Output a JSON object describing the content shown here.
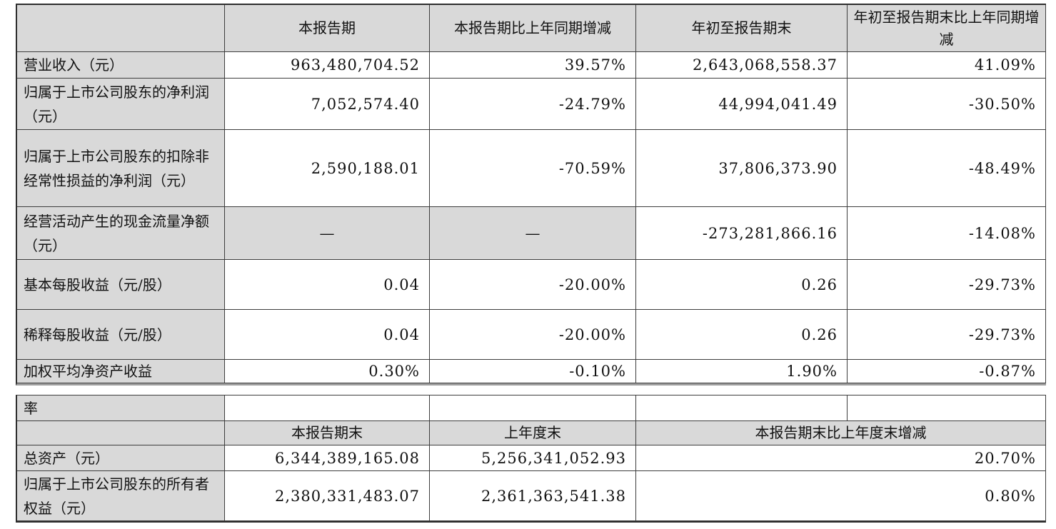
{
  "colors": {
    "header_bg": "#d9d9d9",
    "label_bg": "#d9d9d9",
    "border_dark": "#2e2e2e",
    "border_inner": "#3d3d3d",
    "table1_bottom_rule": "#9e9e9e"
  },
  "table1": {
    "headers": [
      "",
      "本报告期",
      "本报告期比上年同期增减",
      "年初至报告期末",
      "年初至报告期末比上年同期增减"
    ],
    "rows": [
      {
        "label": "营业收入（元）",
        "values": [
          "963,480,704.52",
          "39.57%",
          "2,643,068,558.37",
          "41.09%"
        ]
      },
      {
        "label": "归属于上市公司股东的净利润（元）",
        "values": [
          "7,052,574.40",
          "-24.79%",
          "44,994,041.49",
          "-30.50%"
        ]
      },
      {
        "label": "归属于上市公司股东的扣除非经常性损益的净利润（元）",
        "values": [
          "2,590,188.01",
          "-70.59%",
          "37,806,373.90",
          "-48.49%"
        ]
      },
      {
        "label": "经营活动产生的现金流量净额（元）",
        "values": [
          "—",
          "—",
          "-273,281,866.16",
          "-14.08%"
        ]
      },
      {
        "label": "基本每股收益（元/股）",
        "values": [
          "0.04",
          "-20.00%",
          "0.26",
          "-29.73%"
        ]
      },
      {
        "label": "稀释每股收益（元/股）",
        "values": [
          "0.04",
          "-20.00%",
          "0.26",
          "-29.73%"
        ]
      },
      {
        "label": "加权平均净资产收益",
        "values": [
          "0.30%",
          "-0.10%",
          "1.90%",
          "-0.87%"
        ]
      }
    ]
  },
  "table2": {
    "overflow_label": "率",
    "headers": [
      "",
      "本报告期末",
      "上年度末",
      "本报告期末比上年度末增减"
    ],
    "rows": [
      {
        "label": "总资产（元）",
        "values": [
          "6,344,389,165.08",
          "5,256,341,052.93",
          "20.70%"
        ]
      },
      {
        "label": "归属于上市公司股东的所有者权益（元）",
        "values": [
          "2,380,331,483.07",
          "2,361,363,541.38",
          "0.80%"
        ]
      }
    ]
  }
}
